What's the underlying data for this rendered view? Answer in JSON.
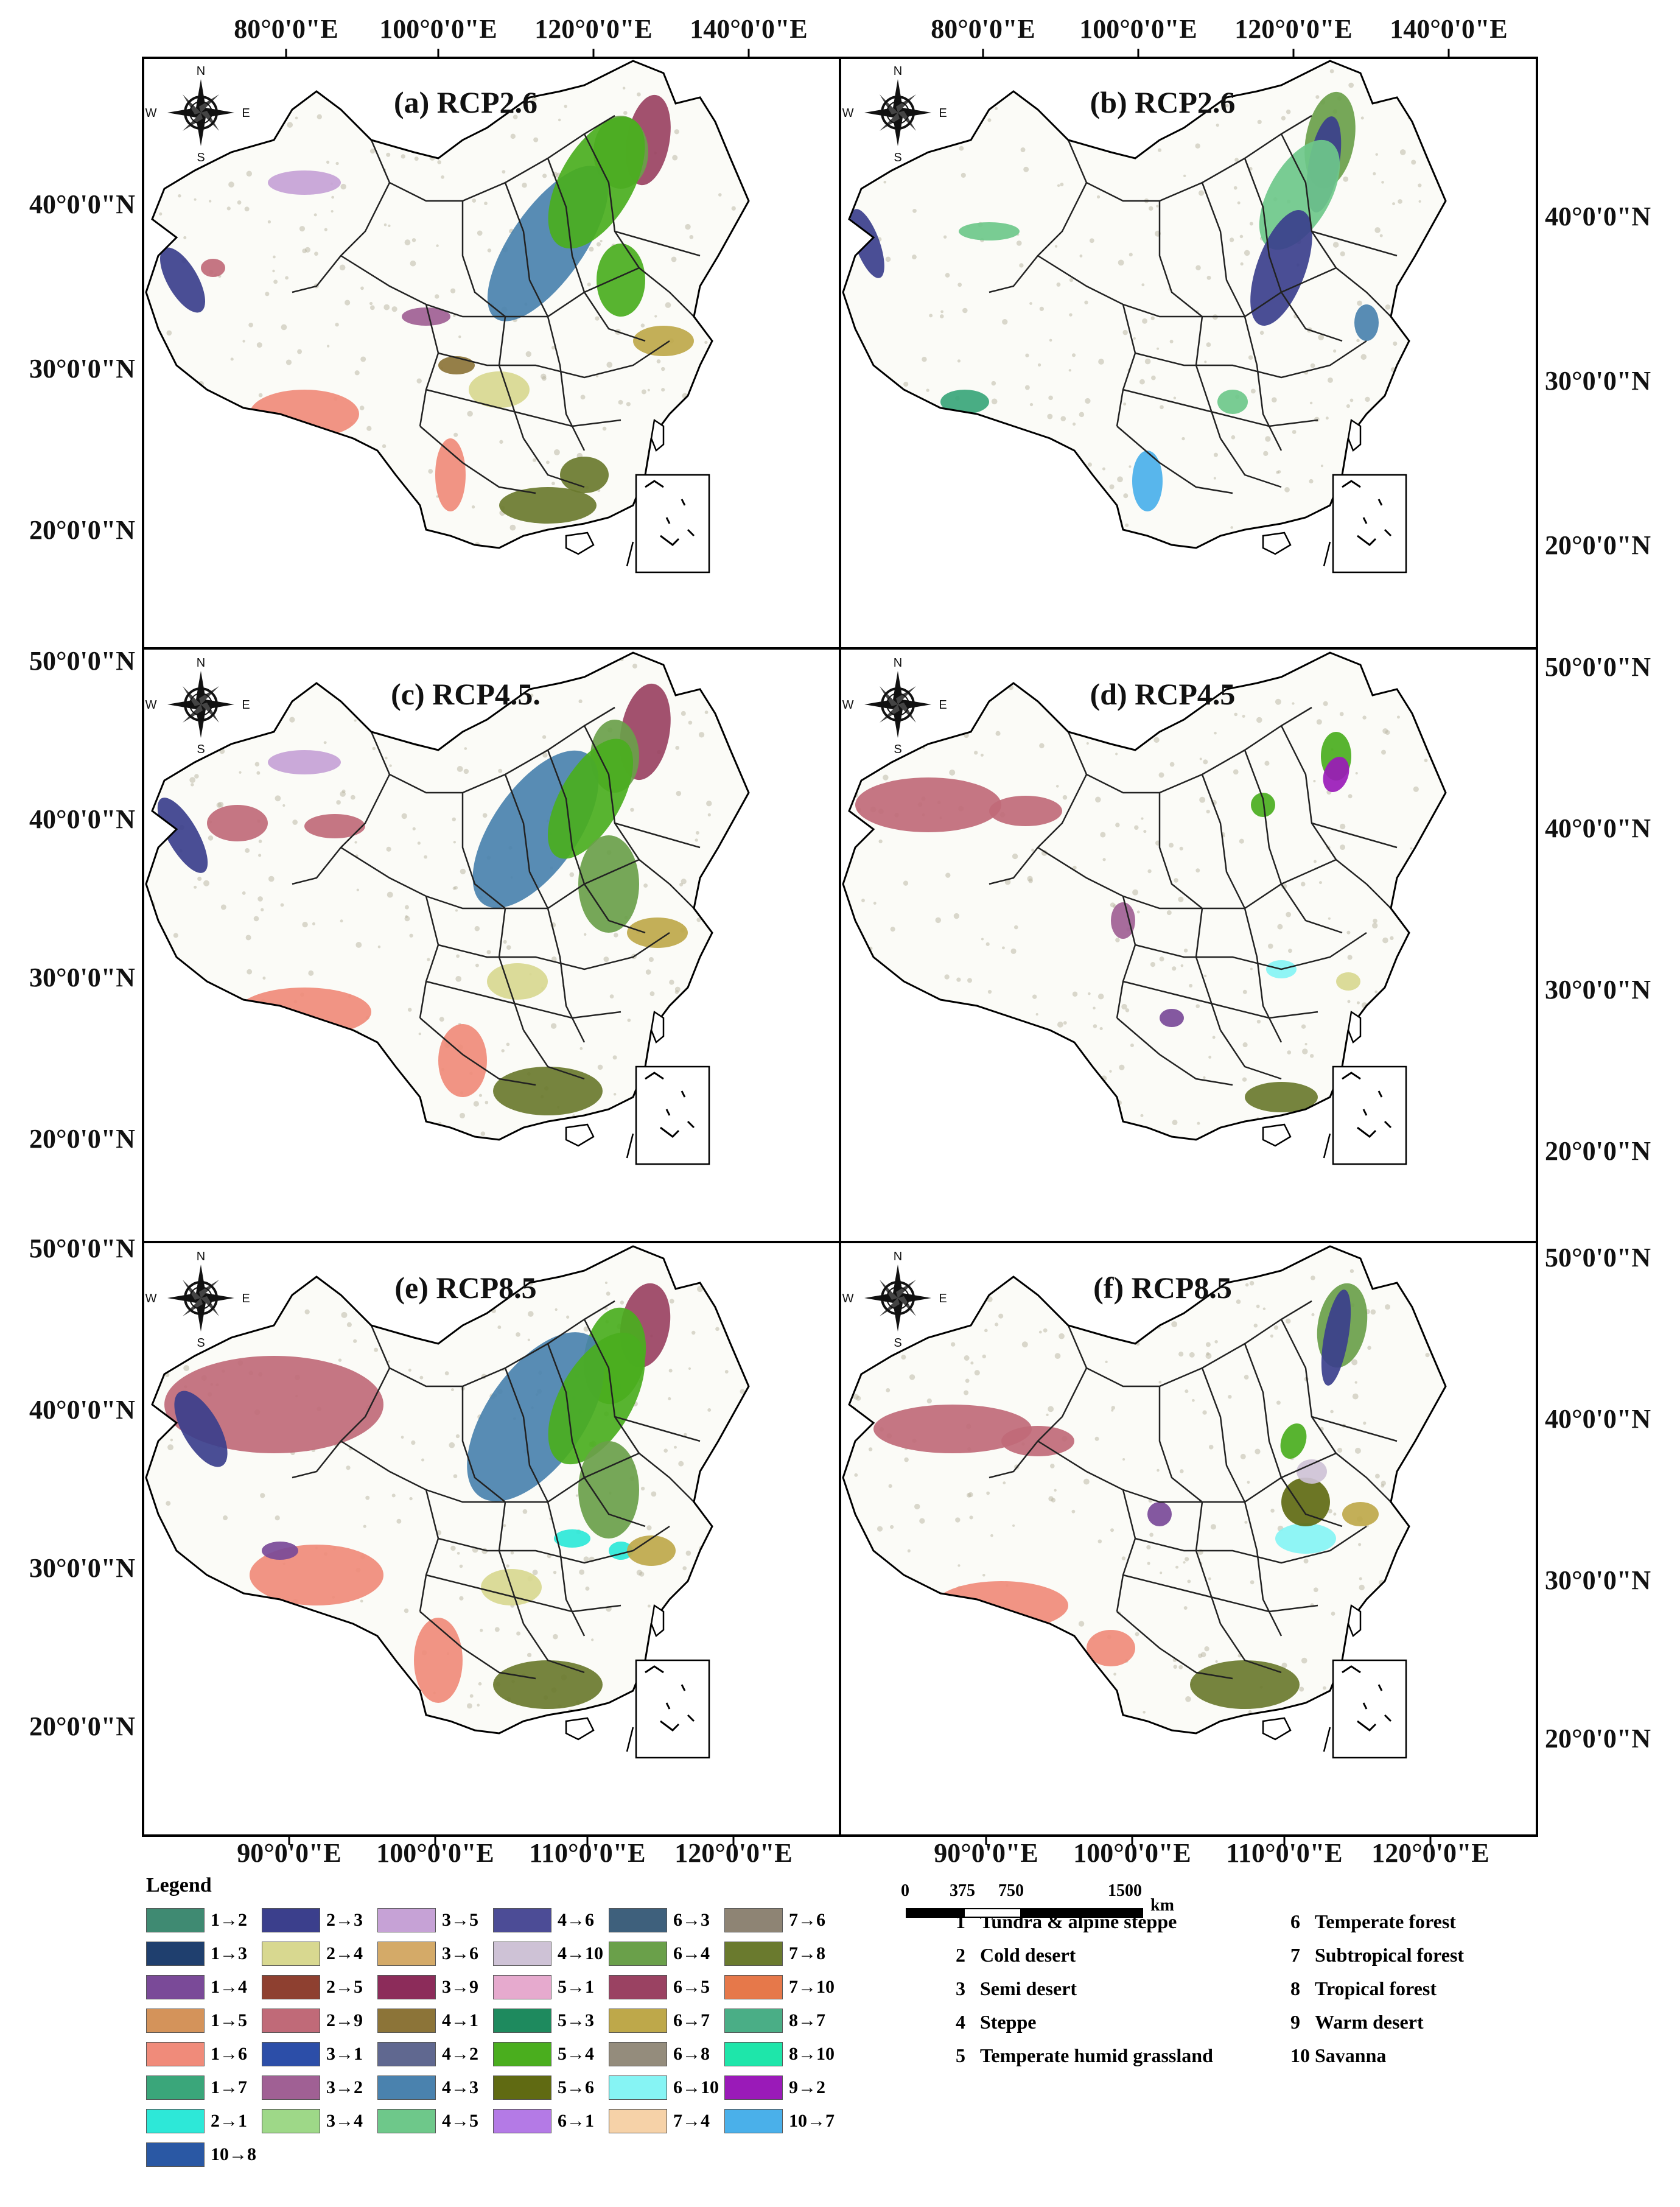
{
  "panels": [
    {
      "id": "a",
      "title": "(a) RCP2.6"
    },
    {
      "id": "b",
      "title": "(b) RCP2.6"
    },
    {
      "id": "c",
      "title": "(c) RCP4.5."
    },
    {
      "id": "d",
      "title": "(d) RCP4.5"
    },
    {
      "id": "e",
      "title": "(e) RCP8.5"
    },
    {
      "id": "f",
      "title": "(f) RCP8.5"
    }
  ],
  "compass": {
    "n": "N",
    "s": "S",
    "e": "E",
    "w": "W"
  },
  "axes": {
    "top_lon": [
      "80°0'0\"E",
      "100°0'0\"E",
      "120°0'0\"E",
      "140°0'0\"E",
      "80°0'0\"E",
      "100°0'0\"E",
      "120°0'0\"E",
      "140°0'0\"E"
    ],
    "bottom_lon": [
      "90°0'0\"E",
      "100°0'0\"E",
      "110°0'0\"E",
      "120°0'0\"E",
      "90°0'0\"E",
      "100°0'0\"E",
      "110°0'0\"E",
      "120°0'0\"E"
    ],
    "left_lat_row1": [
      "40°0'0\"N",
      "30°0'0\"N",
      "20°0'0\"N"
    ],
    "left_lat_row2": [
      "50°0'0\"N",
      "40°0'0\"N",
      "30°0'0\"N",
      "20°0'0\"N"
    ],
    "left_lat_row3": [
      "50°0'0\"N",
      "40°0'0\"N",
      "30°0'0\"N",
      "20°0'0\"N"
    ],
    "right_lat_row1": [
      "40°0'0\"N",
      "30°0'0\"N",
      "20°0'0\"N"
    ],
    "right_lat_row2": [
      "50°0'0\"N",
      "40°0'0\"N",
      "30°0'0\"N",
      "20°0'0\"N"
    ],
    "right_lat_row3": [
      "50°0'0\"N",
      "40°0'0\"N",
      "30°0'0\"N",
      "20°0'0\"N"
    ]
  },
  "legend": {
    "title": "Legend",
    "transitions": [
      {
        "label": "1→2",
        "color": "#3f8a72"
      },
      {
        "label": "1→3",
        "color": "#1f3f6e"
      },
      {
        "label": "1→4",
        "color": "#7a4a98"
      },
      {
        "label": "1→5",
        "color": "#d4935a"
      },
      {
        "label": "1→6",
        "color": "#f08b7a"
      },
      {
        "label": "1→7",
        "color": "#3aa67a"
      },
      {
        "label": "2→1",
        "color": "#2de8d8"
      },
      {
        "label": "2→3",
        "color": "#3b3f8c"
      },
      {
        "label": "2→4",
        "color": "#d8d890"
      },
      {
        "label": "2→5",
        "color": "#8e4030"
      },
      {
        "label": "2→9",
        "color": "#c06a78"
      },
      {
        "label": "3→1",
        "color": "#2c4ea8"
      },
      {
        "label": "3→2",
        "color": "#a06094"
      },
      {
        "label": "3→4",
        "color": "#9ed888"
      },
      {
        "label": "3→5",
        "color": "#c6a2d6"
      },
      {
        "label": "3→6",
        "color": "#d4aa68"
      },
      {
        "label": "3→9",
        "color": "#8c2c5a"
      },
      {
        "label": "4→1",
        "color": "#8c7438"
      },
      {
        "label": "4→2",
        "color": "#606890"
      },
      {
        "label": "4→3",
        "color": "#4a82ae"
      },
      {
        "label": "4→5",
        "color": "#6ec88a"
      },
      {
        "label": "4→6",
        "color": "#4c4c96"
      },
      {
        "label": "4→10",
        "color": "#cec2d6"
      },
      {
        "label": "5→1",
        "color": "#e6aace"
      },
      {
        "label": "5→3",
        "color": "#1e8a5e"
      },
      {
        "label": "5→4",
        "color": "#4aae1e"
      },
      {
        "label": "5→6",
        "color": "#606a12"
      },
      {
        "label": "6→1",
        "color": "#b47ae6"
      },
      {
        "label": "6→3",
        "color": "#3e607c"
      },
      {
        "label": "6→4",
        "color": "#6aa04a"
      },
      {
        "label": "6→5",
        "color": "#9a4262"
      },
      {
        "label": "6→7",
        "color": "#bea84a"
      },
      {
        "label": "6→8",
        "color": "#948c7c"
      },
      {
        "label": "6→10",
        "color": "#86f4f4"
      },
      {
        "label": "7→4",
        "color": "#f6d2a8"
      },
      {
        "label": "7→6",
        "color": "#8e8474"
      },
      {
        "label": "7→8",
        "color": "#6a7a2e"
      },
      {
        "label": "7→10",
        "color": "#e6784a"
      },
      {
        "label": "8→7",
        "color": "#4aae86"
      },
      {
        "label": "8→10",
        "color": "#1ee6aa"
      },
      {
        "label": "9→2",
        "color": "#9a1ab8"
      },
      {
        "label": "10→7",
        "color": "#4ab0ea"
      },
      {
        "label": "10→8",
        "color": "#2a58a4"
      }
    ],
    "classes": [
      {
        "num": "1",
        "name": "Tundra & alpine steppe"
      },
      {
        "num": "2",
        "name": "Cold desert"
      },
      {
        "num": "3",
        "name": "Semi desert"
      },
      {
        "num": "4",
        "name": "Steppe"
      },
      {
        "num": "5",
        "name": "Temperate humid grassland"
      },
      {
        "num": "6",
        "name": "Temperate forest"
      },
      {
        "num": "7",
        "name": "Subtropical forest"
      },
      {
        "num": "8",
        "name": "Tropical forest"
      },
      {
        "num": "9",
        "name": "Warm desert"
      },
      {
        "num": "10",
        "name": "Savanna"
      }
    ]
  },
  "scalebar": {
    "ticks": [
      "0",
      "375",
      "750",
      "1500"
    ],
    "unit": "km"
  }
}
